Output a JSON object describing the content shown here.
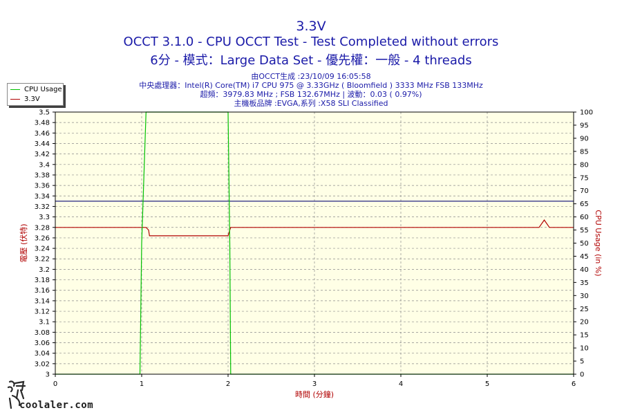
{
  "header": {
    "title": "3.3V",
    "subtitle1": "OCCT 3.1.0 - CPU OCCT Test - Test Completed without errors",
    "subtitle2": "6分 - 模式：Large Data Set - 優先權：一般 - 4 threads",
    "info": [
      "由OCCT生成 :23/10/09 16:05:58",
      "中央處理器：Intel(R) Core(TM) i7 CPU 975 @ 3.33GHz ( Bloomfield ) 3333 MHz FSB 133MHz",
      "超頻：3979.83 MHz ; FSB 132.67MHz | 波動：0.03 ( 0.97%)",
      "主機板品牌 :EVGA,系列 :X58 SLI Classified"
    ]
  },
  "legend": {
    "cpu_label": "CPU Usage",
    "v_label": "3.3V"
  },
  "watermark": {
    "text": "coolaler.com"
  },
  "colors": {
    "cpu": "#00c000",
    "voltage": "#b00000",
    "reference": "#202080",
    "plot_bg": "#ffffe6",
    "title": "#1a1aa8",
    "axis_label": "#b00000"
  },
  "chart_data": {
    "type": "line",
    "title": "3.3V",
    "xlabel": "時間 (分鐘)",
    "ylabel_left": "電壓 (伏特)",
    "ylabel_right": "CPU Usage (in %)",
    "xlim": [
      0,
      6
    ],
    "ylim_left": [
      3.0,
      3.5
    ],
    "ylim_right": [
      0,
      100
    ],
    "x_ticks": [
      "0",
      "1",
      "2",
      "3",
      "4",
      "5",
      "6"
    ],
    "y_ticks_left": [
      "3",
      "3.02",
      "3.04",
      "3.06",
      "3.08",
      "3.1",
      "3.12",
      "3.14",
      "3.16",
      "3.18",
      "3.2",
      "3.22",
      "3.24",
      "3.26",
      "3.28",
      "3.3",
      "3.32",
      "3.34",
      "3.36",
      "3.38",
      "3.4",
      "3.42",
      "3.44",
      "3.46",
      "3.48",
      "3.5"
    ],
    "y_ticks_right": [
      "0",
      "5",
      "10",
      "15",
      "20",
      "25",
      "30",
      "35",
      "40",
      "45",
      "50",
      "55",
      "60",
      "65",
      "70",
      "75",
      "80",
      "85",
      "90",
      "95",
      "100"
    ],
    "grid": true,
    "legend_position": "top-left",
    "reference_line": {
      "value": 3.33
    },
    "series": [
      {
        "name": "CPU Usage",
        "axis": "right",
        "x": [
          0,
          0.98,
          1.0,
          1.05,
          1.5,
          2.0,
          2.02,
          2.03,
          6.0
        ],
        "y": [
          0,
          0,
          50,
          100,
          100,
          100,
          50,
          0,
          0
        ]
      },
      {
        "name": "3.3V",
        "axis": "left",
        "x": [
          0,
          1.05,
          1.08,
          1.09,
          1.5,
          2.0,
          2.02,
          2.03,
          5.6,
          5.66,
          5.72,
          6.0
        ],
        "y": [
          3.28,
          3.28,
          3.275,
          3.264,
          3.264,
          3.264,
          3.275,
          3.28,
          3.28,
          3.294,
          3.28,
          3.28
        ]
      }
    ]
  }
}
